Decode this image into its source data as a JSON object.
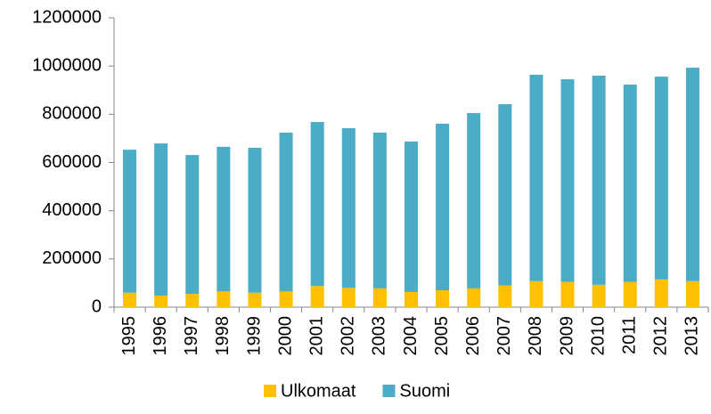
{
  "chart_data": {
    "type": "bar",
    "stacked": true,
    "categories": [
      "1995",
      "1996",
      "1997",
      "1998",
      "1999",
      "2000",
      "2001",
      "2002",
      "2003",
      "2004",
      "2005",
      "2006",
      "2007",
      "2008",
      "2009",
      "2010",
      "2011",
      "2012",
      "2013"
    ],
    "series": [
      {
        "name": "Ulkomaat",
        "color": "#ffc000",
        "values": [
          60000,
          48000,
          55000,
          65000,
          60000,
          65000,
          88000,
          80000,
          78000,
          63000,
          70000,
          78000,
          90000,
          108000,
          105000,
          93000,
          105000,
          115000,
          108000
        ]
      },
      {
        "name": "Suomi",
        "color": "#4bacc6",
        "values": [
          593000,
          631000,
          576000,
          600000,
          601000,
          659000,
          680000,
          662000,
          646000,
          624000,
          691000,
          727000,
          752000,
          856000,
          840000,
          867000,
          818000,
          841000,
          885000
        ]
      }
    ],
    "ylim": [
      0,
      1200000
    ],
    "yticks": [
      0,
      200000,
      400000,
      600000,
      800000,
      1000000,
      1200000
    ],
    "grid": false,
    "legend": "bottom"
  }
}
